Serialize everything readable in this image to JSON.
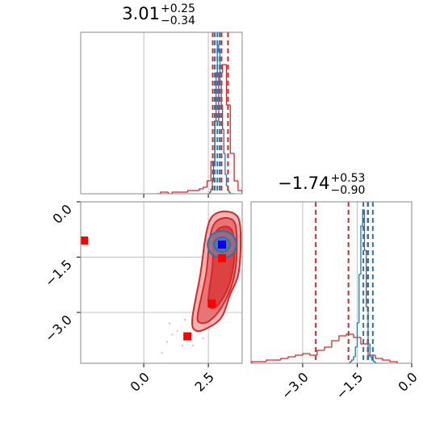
{
  "chart_data": [
    {
      "type": "histogram",
      "title": {
        "value": "3.01",
        "upper": "+0.25",
        "lower": "−0.34"
      },
      "xlim": [
        -2.44,
        3.81
      ],
      "xticks": [
        0,
        2.5
      ],
      "ylim": [
        0,
        100
      ],
      "grid": true,
      "series": [
        {
          "color": "#d62728",
          "bins": [
            0.5,
            0.65,
            0.8,
            0.95,
            1.1,
            1.25,
            1.4,
            1.55,
            1.7,
            1.85,
            2.0,
            2.15,
            2.3,
            2.45,
            2.6,
            2.75,
            2.9,
            3.05,
            3.2,
            3.35,
            3.5,
            3.65,
            3.8
          ],
          "values": [
            0,
            1,
            1,
            0,
            1,
            1,
            1,
            1,
            2,
            2,
            2,
            3,
            4,
            8,
            20,
            45,
            75,
            80,
            55,
            25,
            8,
            2
          ]
        },
        {
          "color": "#1f77b4",
          "bins": [
            2.5,
            2.55,
            2.6,
            2.65,
            2.7,
            2.75,
            2.8,
            2.85,
            2.9,
            2.95,
            3.0,
            3.05,
            3.1,
            3.15,
            3.2,
            3.25,
            3.3,
            3.35,
            3.4,
            3.45,
            3.5
          ],
          "values": [
            0,
            1,
            3,
            8,
            20,
            45,
            75,
            92,
            88,
            70,
            55,
            40,
            25,
            12,
            5,
            2,
            1,
            0,
            0,
            0
          ]
        }
      ],
      "lines": [
        {
          "color": "#d62728",
          "values": [
            2.67,
            3.01,
            3.26
          ]
        },
        {
          "color": "#1f77b4",
          "values": [
            2.75,
            2.85,
            2.94
          ]
        }
      ]
    },
    {
      "type": "contour",
      "xlim": [
        -2.44,
        3.81
      ],
      "ylim": [
        -4.38,
        0
      ],
      "xticks": [
        {
          "value": 0,
          "label": "0.0"
        },
        {
          "value": 2.5,
          "label": "2.5"
        }
      ],
      "yticks": [
        {
          "value": 0,
          "label": "0.0"
        },
        {
          "value": -1.5,
          "label": "−1.5"
        },
        {
          "value": -3,
          "label": "−3.0"
        }
      ],
      "grid": true,
      "points": {
        "color": "#f4b6b6",
        "x": [
          1.0,
          0.9,
          1.3,
          1.6,
          2.0,
          1.5,
          0.7,
          2.2,
          1.9,
          1.1,
          2.3
        ],
        "y": [
          -3.3,
          -3.8,
          -3.5,
          -3.2,
          -2.7,
          -3.9,
          -4.1,
          -2.3,
          -3.9,
          -3.6,
          -3.7
        ]
      },
      "contours": [
        {
          "color": "#d62728",
          "fill": "#f3a6a6",
          "x": [
            1.88,
            2.19,
            2.41,
            2.66,
            3.19,
            3.66,
            3.75,
            3.66,
            3.34,
            3.03,
            2.56,
            2.03
          ],
          "y": [
            -3.17,
            -1.97,
            -0.88,
            -0.39,
            -0.26,
            -0.44,
            -1.09,
            -1.97,
            -2.52,
            -3.11,
            -3.39,
            -3.5
          ]
        },
        {
          "color": "#d62728",
          "fill": "#e36a6a",
          "x": [
            2.09,
            2.41,
            2.56,
            2.78,
            3.25,
            3.56,
            3.59,
            3.44,
            3.03,
            2.56,
            2.19
          ],
          "y": [
            -3.06,
            -1.97,
            -0.98,
            -0.55,
            -0.44,
            -0.66,
            -1.53,
            -2.19,
            -2.84,
            -3.22,
            -3.28
          ]
        },
        {
          "color": "#d62728",
          "fill": "#d93a3a",
          "x": [
            2.5,
            2.66,
            2.72,
            2.97,
            3.41,
            3.5,
            3.28,
            2.81
          ],
          "y": [
            -2.74,
            -1.75,
            -0.98,
            -0.7,
            -0.77,
            -1.53,
            -2.3,
            -2.84
          ]
        },
        {
          "color": "#1f77b4",
          "fill": "#9a6f86",
          "x": [
            3.59,
            3.43,
            3.03,
            2.63,
            2.47,
            2.63,
            3.03,
            3.43
          ],
          "y": [
            -1.16,
            -0.9,
            -0.79,
            -0.9,
            -1.16,
            -1.42,
            -1.53,
            -1.42
          ]
        },
        {
          "color": "#1f77b4",
          "fill": "#5f7396",
          "x": [
            3.34,
            3.25,
            3.03,
            2.81,
            2.72,
            2.81,
            3.03,
            3.25
          ],
          "y": [
            -1.16,
            -1.02,
            -0.96,
            -1.02,
            -1.16,
            -1.3,
            -1.36,
            -1.3
          ]
        }
      ],
      "markers": [
        {
          "color": "#ff0000",
          "x": [
            -2.31,
            1.69,
            2.63,
            3.03
          ],
          "y": [
            -1.05,
            -3.65,
            -2.76,
            -1.53
          ]
        },
        {
          "color": "#0000ff",
          "x": [
            3.03
          ],
          "y": [
            -1.16
          ]
        }
      ]
    },
    {
      "type": "histogram",
      "title": {
        "value": "−1.74",
        "upper": "+0.53",
        "lower": "−0.90"
      },
      "xlim": [
        -4.42,
        0
      ],
      "ylim": [
        0,
        100
      ],
      "grid": true,
      "xticks": [
        {
          "value": -3,
          "label": "−3.0"
        },
        {
          "value": -1.5,
          "label": "−1.5"
        },
        {
          "value": 0,
          "label": "0.0"
        }
      ],
      "series": [
        {
          "color": "#d62728",
          "bins": [
            -4.4,
            -4.2,
            -4.0,
            -3.8,
            -3.6,
            -3.4,
            -3.2,
            -3.0,
            -2.8,
            -2.6,
            -2.4,
            -2.2,
            -2.0,
            -1.8,
            -1.6,
            -1.4,
            -1.2,
            -1.0,
            -0.8,
            -0.6,
            -0.4
          ],
          "values": [
            1,
            1,
            2,
            2,
            3,
            4,
            5,
            6,
            5,
            8,
            10,
            14,
            17,
            18,
            16,
            12,
            5,
            3,
            2,
            1
          ]
        },
        {
          "color": "#1f77b4",
          "bins": [
            -1.8,
            -1.75,
            -1.7,
            -1.65,
            -1.6,
            -1.55,
            -1.5,
            -1.45,
            -1.4,
            -1.35,
            -1.3,
            -1.25,
            -1.2,
            -1.15,
            -1.1,
            -1.05,
            -1.0,
            -0.95,
            -0.9,
            -0.85,
            -0.8
          ],
          "values": [
            0,
            0,
            1,
            2,
            4,
            10,
            25,
            55,
            85,
            95,
            70,
            35,
            12,
            4,
            2,
            1,
            0,
            0,
            0,
            0
          ]
        }
      ],
      "lines": [
        {
          "color": "#d62728",
          "values": [
            -2.64,
            -1.74,
            -1.21
          ]
        },
        {
          "color": "#1f77b4",
          "values": [
            -1.33,
            -1.2,
            -1.07
          ]
        }
      ]
    }
  ]
}
